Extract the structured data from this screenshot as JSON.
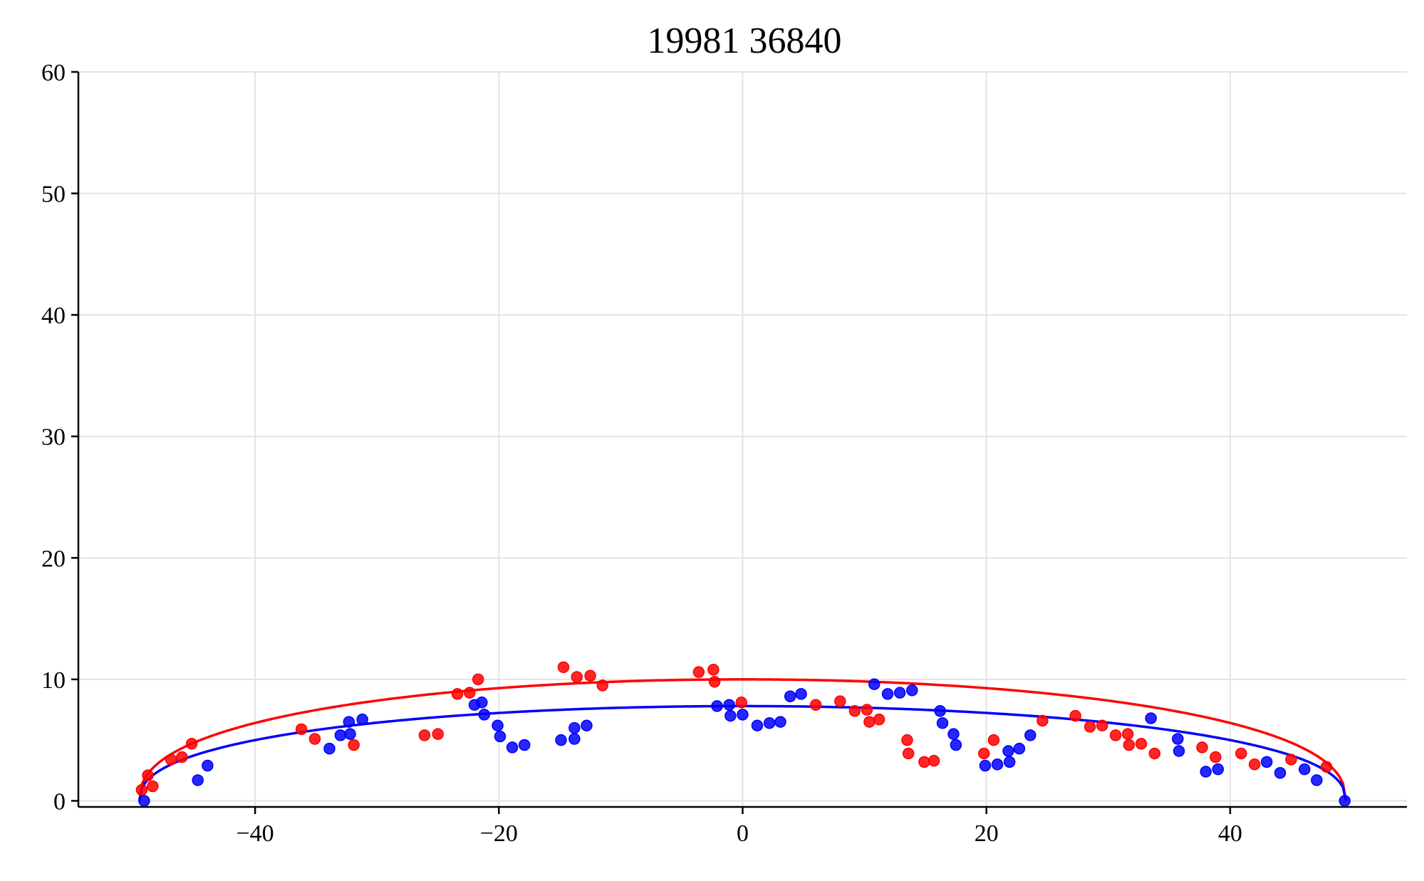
{
  "chart_data": {
    "type": "scatter",
    "title": "19981 36840",
    "xlabel": "",
    "ylabel": "",
    "xlim": [
      -54.5,
      54.5
    ],
    "ylim": [
      -0.5,
      60
    ],
    "xticks": [
      -40,
      -20,
      0,
      20,
      40
    ],
    "yticks": [
      0,
      10,
      20,
      30,
      40,
      50,
      60
    ],
    "xtick_labels": [
      "−40",
      "−20",
      "0",
      "20",
      "40"
    ],
    "ytick_labels": [
      "0",
      "10",
      "20",
      "30",
      "40",
      "50",
      "60"
    ],
    "grid": true,
    "legend": "none",
    "series": [
      {
        "kind": "fit",
        "color": "#ff0000",
        "x_range": [
          -49.5,
          49.5
        ],
        "peak_y": 10.0,
        "peak_x": 1.0
      },
      {
        "kind": "fit",
        "color": "#0000ff",
        "x_range": [
          -49.5,
          49.5
        ],
        "peak_y": 7.8,
        "peak_x": 1.0
      },
      {
        "kind": "points",
        "color": "#ff0000",
        "points": [
          [
            -49.3,
            0.9
          ],
          [
            -48.8,
            2.1
          ],
          [
            -48.4,
            1.2
          ],
          [
            -46.9,
            3.4
          ],
          [
            -46.0,
            3.6
          ],
          [
            -45.2,
            4.7
          ],
          [
            -36.2,
            5.9
          ],
          [
            -35.1,
            5.1
          ],
          [
            -31.9,
            4.6
          ],
          [
            -26.1,
            5.4
          ],
          [
            -25.0,
            5.5
          ],
          [
            -23.4,
            8.8
          ],
          [
            -22.4,
            8.9
          ],
          [
            -21.7,
            10.0
          ],
          [
            -14.7,
            11.0
          ],
          [
            -13.6,
            10.2
          ],
          [
            -12.5,
            10.3
          ],
          [
            -11.5,
            9.5
          ],
          [
            -3.6,
            10.6
          ],
          [
            -2.4,
            10.8
          ],
          [
            -2.3,
            9.8
          ],
          [
            -0.1,
            8.1
          ],
          [
            6.0,
            7.9
          ],
          [
            8.0,
            8.2
          ],
          [
            9.2,
            7.4
          ],
          [
            10.2,
            7.5
          ],
          [
            10.4,
            6.5
          ],
          [
            11.2,
            6.7
          ],
          [
            13.5,
            5.0
          ],
          [
            13.6,
            3.9
          ],
          [
            14.9,
            3.2
          ],
          [
            15.7,
            3.3
          ],
          [
            19.8,
            3.9
          ],
          [
            20.6,
            5.0
          ],
          [
            24.6,
            6.6
          ],
          [
            27.3,
            7.0
          ],
          [
            28.5,
            6.1
          ],
          [
            29.5,
            6.2
          ],
          [
            30.6,
            5.4
          ],
          [
            31.6,
            5.5
          ],
          [
            31.7,
            4.6
          ],
          [
            32.7,
            4.7
          ],
          [
            33.8,
            3.9
          ],
          [
            37.7,
            4.4
          ],
          [
            38.8,
            3.6
          ],
          [
            40.9,
            3.9
          ],
          [
            42.0,
            3.0
          ],
          [
            45.0,
            3.4
          ],
          [
            47.9,
            2.8
          ]
        ]
      },
      {
        "kind": "points",
        "color": "#0000ff",
        "points": [
          [
            -49.1,
            0.0
          ],
          [
            -44.7,
            1.7
          ],
          [
            -43.9,
            2.9
          ],
          [
            -33.9,
            4.3
          ],
          [
            -33.0,
            5.4
          ],
          [
            -32.3,
            6.5
          ],
          [
            -32.2,
            5.5
          ],
          [
            -31.2,
            6.7
          ],
          [
            -22.0,
            7.9
          ],
          [
            -21.4,
            8.1
          ],
          [
            -21.2,
            7.1
          ],
          [
            -20.1,
            6.2
          ],
          [
            -19.9,
            5.3
          ],
          [
            -18.9,
            4.4
          ],
          [
            -17.9,
            4.6
          ],
          [
            -14.9,
            5.0
          ],
          [
            -13.8,
            5.1
          ],
          [
            -13.8,
            6.0
          ],
          [
            -12.8,
            6.2
          ],
          [
            -2.1,
            7.8
          ],
          [
            -1.1,
            7.9
          ],
          [
            -1.0,
            7.0
          ],
          [
            0.0,
            7.1
          ],
          [
            1.2,
            6.2
          ],
          [
            2.2,
            6.4
          ],
          [
            3.1,
            6.5
          ],
          [
            3.9,
            8.6
          ],
          [
            4.8,
            8.8
          ],
          [
            10.8,
            9.6
          ],
          [
            11.9,
            8.8
          ],
          [
            12.9,
            8.9
          ],
          [
            13.9,
            9.1
          ],
          [
            16.2,
            7.4
          ],
          [
            16.4,
            6.4
          ],
          [
            17.3,
            5.5
          ],
          [
            17.5,
            4.6
          ],
          [
            19.9,
            2.9
          ],
          [
            20.9,
            3.0
          ],
          [
            21.8,
            4.1
          ],
          [
            21.9,
            3.2
          ],
          [
            22.7,
            4.3
          ],
          [
            23.6,
            5.4
          ],
          [
            33.5,
            6.8
          ],
          [
            35.7,
            5.1
          ],
          [
            35.8,
            4.1
          ],
          [
            38.0,
            2.4
          ],
          [
            39.0,
            2.6
          ],
          [
            43.0,
            3.2
          ],
          [
            44.1,
            2.3
          ],
          [
            46.1,
            2.6
          ],
          [
            47.1,
            1.7
          ],
          [
            49.4,
            0.0
          ]
        ]
      }
    ]
  }
}
